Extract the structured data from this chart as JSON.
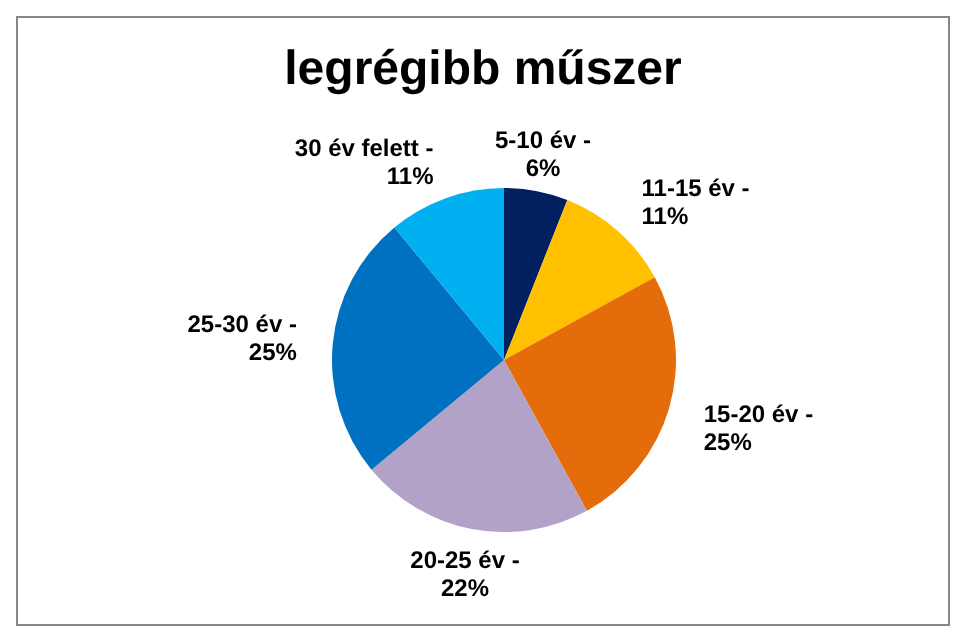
{
  "chart_data": {
    "type": "pie",
    "title": "legrégibb műszer",
    "categories": [
      "5-10 év -",
      "11-15 év -",
      "15-20 év -",
      "20-25 év -",
      "25-30 év -",
      "30 év felett -"
    ],
    "values": [
      6,
      11,
      25,
      22,
      25,
      11
    ],
    "colors": [
      "#002060",
      "#ffc000",
      "#e46c0a",
      "#b3a2c7",
      "#0070c0",
      "#00b0f0"
    ],
    "value_labels": [
      "6%",
      "11%",
      "25%",
      "22%",
      "25%",
      "11%"
    ],
    "legend": false
  }
}
